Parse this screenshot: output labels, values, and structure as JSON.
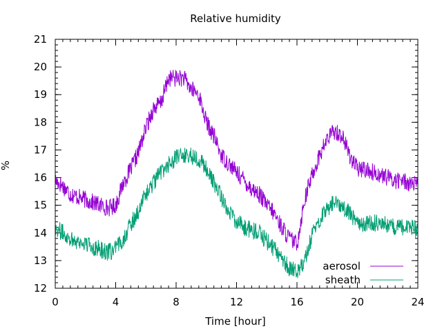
{
  "chart_data": {
    "type": "line",
    "title": "Relative humidity",
    "xlabel": "Time [hour]",
    "ylabel": "%",
    "xlim": [
      0,
      24
    ],
    "ylim": [
      12,
      21
    ],
    "xticks": [
      0,
      4,
      8,
      12,
      16,
      20,
      24
    ],
    "yticks": [
      12,
      13,
      14,
      15,
      16,
      17,
      18,
      19,
      20,
      21
    ],
    "x_minor_step": 0.5,
    "y_minor_step": 0.2,
    "grid": false,
    "legend_position": "bottom-right",
    "noise_amplitude": 0.32,
    "series": [
      {
        "name": "aerosol",
        "color": "#9400d3",
        "x": [
          0,
          0.5,
          1,
          1.5,
          2,
          2.5,
          3,
          3.5,
          4,
          4.5,
          5,
          5.5,
          6,
          6.5,
          7,
          7.5,
          8,
          8.5,
          9,
          9.5,
          10,
          10.5,
          11,
          11.5,
          12,
          12.5,
          13,
          13.5,
          14,
          14.5,
          15,
          15.5,
          16,
          16.5,
          17,
          17.5,
          18,
          18.5,
          19,
          19.5,
          20,
          20.5,
          21,
          21.5,
          22,
          22.5,
          23,
          23.5,
          24
        ],
        "values": [
          15.9,
          15.7,
          15.4,
          15.3,
          15.2,
          15.1,
          15.0,
          14.9,
          15.0,
          15.8,
          16.3,
          16.9,
          17.8,
          18.5,
          18.7,
          19.6,
          19.6,
          19.6,
          19.2,
          19.0,
          18.0,
          17.5,
          16.8,
          16.5,
          16.2,
          15.9,
          15.6,
          15.4,
          15.0,
          14.7,
          14.2,
          13.8,
          13.6,
          15.2,
          16.1,
          16.8,
          17.4,
          17.7,
          17.5,
          16.8,
          16.3,
          16.3,
          16.2,
          16.1,
          16.0,
          15.9,
          15.9,
          15.8,
          15.7
        ]
      },
      {
        "name": "sheath",
        "color": "#009e73",
        "x": [
          0,
          0.5,
          1,
          1.5,
          2,
          2.5,
          3,
          3.5,
          4,
          4.5,
          5,
          5.5,
          6,
          6.5,
          7,
          7.5,
          8,
          8.5,
          9,
          9.5,
          10,
          10.5,
          11,
          11.5,
          12,
          12.5,
          13,
          13.5,
          14,
          14.5,
          15,
          15.5,
          16,
          16.5,
          17,
          17.5,
          18,
          18.5,
          19,
          19.5,
          20,
          20.5,
          21,
          21.5,
          22,
          22.5,
          23,
          23.5,
          24
        ],
        "values": [
          14.2,
          14.0,
          13.8,
          13.7,
          13.6,
          13.5,
          13.4,
          13.3,
          13.4,
          13.8,
          14.3,
          14.8,
          15.4,
          15.8,
          16.2,
          16.5,
          16.7,
          16.8,
          16.8,
          16.7,
          16.3,
          15.8,
          15.3,
          14.8,
          14.4,
          14.2,
          14.1,
          14.0,
          13.7,
          13.4,
          13.1,
          12.7,
          12.6,
          13.0,
          13.9,
          14.5,
          14.9,
          15.1,
          15.0,
          14.7,
          14.4,
          14.3,
          14.4,
          14.3,
          14.3,
          14.2,
          14.2,
          14.2,
          14.1
        ]
      }
    ]
  }
}
